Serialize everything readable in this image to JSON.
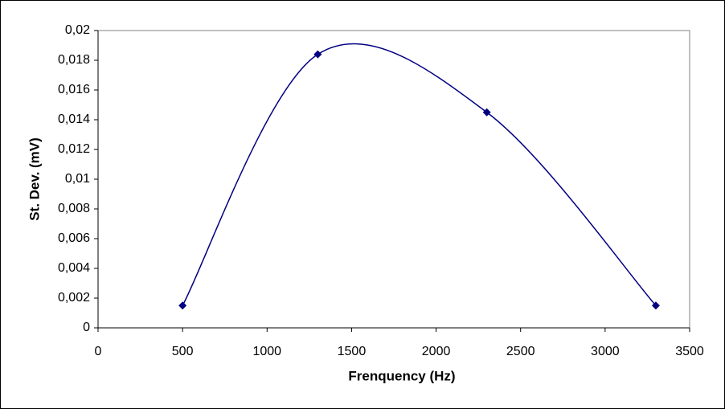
{
  "chart_data": {
    "type": "scatter",
    "xlabel": "Frenquency (Hz)",
    "ylabel": "St. Dev. (mV)",
    "series": [
      {
        "color": "#000080",
        "x": [
          500,
          1300,
          2300,
          3300
        ],
        "values": [
          0.0015,
          0.0184,
          0.0145,
          0.0015
        ]
      }
    ],
    "smooth": true,
    "xlim": [
      0,
      3500
    ],
    "xticks": [
      0,
      500,
      1000,
      1500,
      2000,
      2500,
      3000,
      3500
    ],
    "ylim": [
      0,
      0.02
    ],
    "yticks": [
      0,
      {
        "value": 0.002,
        "label": "0,002"
      },
      {
        "value": 0.004,
        "label": "0,004"
      },
      {
        "value": 0.006,
        "label": "0,006"
      },
      {
        "value": 0.008,
        "label": "0,008"
      },
      {
        "value": 0.01,
        "label": "0,01"
      },
      {
        "value": 0.012,
        "label": "0,012"
      },
      {
        "value": 0.014,
        "label": "0,014"
      },
      {
        "value": 0.016,
        "label": "0,016"
      },
      {
        "value": 0.018,
        "label": "0,018"
      },
      {
        "value": 0.02,
        "label": "0,02"
      }
    ],
    "grid": false
  }
}
